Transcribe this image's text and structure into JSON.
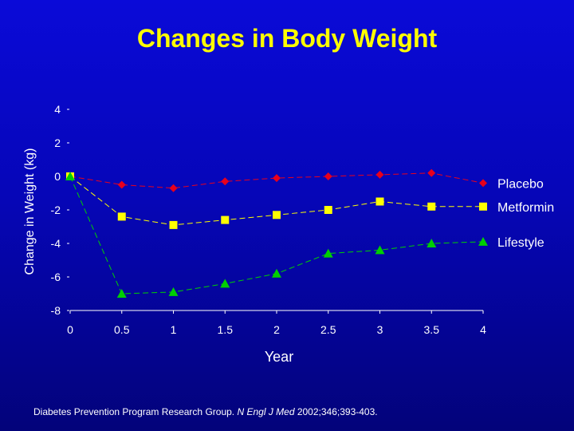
{
  "chart_data": {
    "type": "line",
    "title": "Changes in Body Weight",
    "xlabel": "Year",
    "ylabel": "Change in Weight (kg)",
    "x": [
      0,
      0.5,
      1,
      1.5,
      2,
      2.5,
      3,
      3.5,
      4
    ],
    "x_tick_labels": [
      "0",
      "0.5",
      "1",
      "1.5",
      "2",
      "2.5",
      "3",
      "3.5",
      "4"
    ],
    "y_ticks": [
      4,
      2,
      0,
      -2,
      -4,
      -6,
      -8
    ],
    "y_tick_labels": [
      "4",
      "2",
      "0",
      "-2",
      "-4",
      "-6",
      "-8"
    ],
    "xlim": [
      0,
      4
    ],
    "ylim": [
      -8,
      4
    ],
    "grid": false,
    "legend_placement": "right",
    "series": [
      {
        "name": "Placebo",
        "marker": "diamond",
        "color": "#e8001c",
        "values": [
          0,
          -0.5,
          -0.7,
          -0.3,
          -0.1,
          0,
          0.1,
          0.2,
          -0.4
        ]
      },
      {
        "name": "Metformin",
        "marker": "square",
        "color": "#ffff00",
        "values": [
          0,
          -2.4,
          -2.9,
          -2.6,
          -2.3,
          -2.0,
          -1.5,
          -1.8,
          -1.8
        ]
      },
      {
        "name": "Lifestyle",
        "marker": "triangle",
        "color": "#00d000",
        "values": [
          0,
          -7.0,
          -6.9,
          -6.4,
          -5.8,
          -4.6,
          -4.4,
          -4.0,
          -3.9
        ]
      }
    ]
  },
  "citation": {
    "text_before": "Diabetes Prevention Program Research Group. ",
    "journal": "N Engl J Med",
    "text_after": " 2002;346;393-403."
  }
}
